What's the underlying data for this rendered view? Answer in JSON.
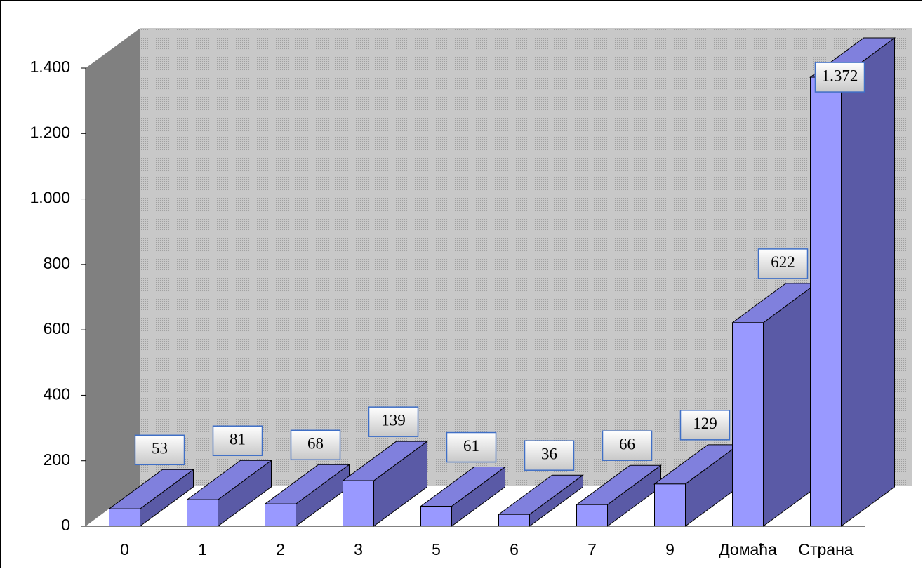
{
  "chart_data": {
    "type": "bar3d",
    "categories": [
      "0",
      "1",
      "2",
      "3",
      "5",
      "6",
      "7",
      "9",
      "Домаћа",
      "Страна"
    ],
    "values": [
      53,
      81,
      68,
      139,
      61,
      36,
      66,
      129,
      622,
      1372
    ],
    "value_labels": [
      "53",
      "81",
      "68",
      "139",
      "61",
      "36",
      "66",
      "129",
      "622",
      "1.372"
    ],
    "color": "#9999ff",
    "ylim": [
      0,
      1400
    ],
    "yticks": [
      0,
      200,
      400,
      600,
      800,
      {
        "value": 1000,
        "label": "1.000"
      },
      {
        "value": 1200,
        "label": "1.200"
      },
      {
        "value": 1400,
        "label": "1.400"
      }
    ]
  }
}
